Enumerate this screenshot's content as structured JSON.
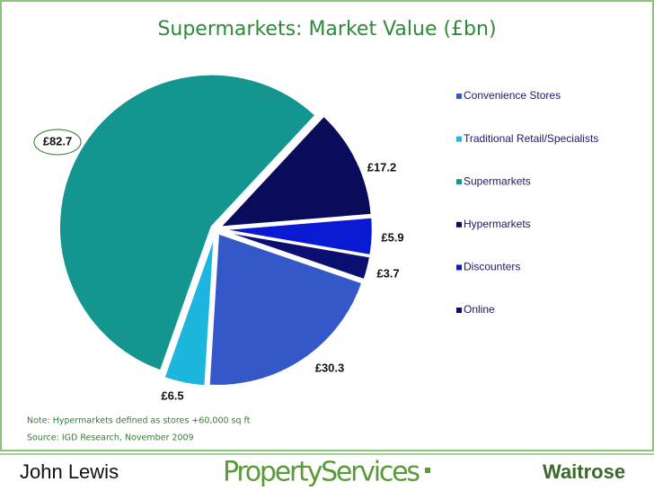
{
  "chart_data": {
    "type": "pie",
    "title": "Supermarkets: Market Value (£bn)",
    "categories": [
      "Convenience Stores",
      "Traditional Retail/Specialists",
      "Supermarkets",
      "Hypermarkets",
      "Discounters",
      "Online"
    ],
    "values": [
      30.3,
      6.5,
      82.7,
      17.2,
      5.9,
      3.7
    ],
    "value_labels": [
      "£30.3",
      "£6.5",
      "£82.7",
      "£17.2",
      "£5.9",
      "£3.7"
    ],
    "colors": [
      "#3558c8",
      "#1cb6de",
      "#14958f",
      "#0b0b5c",
      "#0a1ad2",
      "#0b1070"
    ],
    "notes": [
      "Note: Hypermarkets defined as stores +60,000 sq ft",
      "Source: IGD Research, November 2009"
    ]
  },
  "footer": {
    "left": "John Lewis",
    "center": "PropertyServices",
    "right": "Waitrose"
  }
}
